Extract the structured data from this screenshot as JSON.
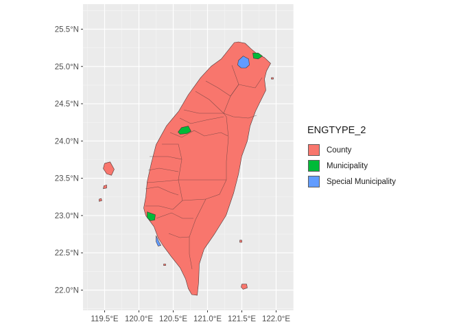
{
  "chart_data": {
    "type": "choropleth-map",
    "title": "",
    "xlabel": "",
    "ylabel": "",
    "xlim": [
      119.2,
      122.25
    ],
    "ylim": [
      21.7,
      25.8
    ],
    "x_ticks": [
      119.5,
      120.0,
      120.5,
      121.0,
      121.5,
      122.0
    ],
    "x_tick_labels": [
      "119.5°E",
      "120.0°E",
      "120.5°E",
      "121.0°E",
      "121.5°E",
      "122.0°E"
    ],
    "y_ticks": [
      22.0,
      22.5,
      23.0,
      23.5,
      24.0,
      24.5,
      25.0,
      25.5
    ],
    "y_tick_labels": [
      "22.0°N",
      "22.5°N",
      "23.0°N",
      "23.5°N",
      "24.0°N",
      "24.5°N",
      "25.0°N",
      "25.5°N"
    ],
    "grid": true,
    "legend": {
      "title": "ENGTYPE_2",
      "position": "right",
      "entries": [
        {
          "name": "County",
          "color": "#F8766D"
        },
        {
          "name": "Municipality",
          "color": "#00BA38"
        },
        {
          "name": "Special Municipality",
          "color": "#619CFF"
        }
      ]
    },
    "regions": [
      {
        "category": "County",
        "shape": "main island",
        "coords": [
          [
            121.39,
            25.32
          ],
          [
            121.45,
            25.33
          ],
          [
            121.55,
            25.31
          ],
          [
            121.63,
            25.24
          ],
          [
            121.72,
            25.17
          ],
          [
            121.83,
            25.12
          ],
          [
            121.92,
            25.04
          ],
          [
            121.86,
            24.94
          ],
          [
            121.83,
            24.83
          ],
          [
            121.85,
            24.68
          ],
          [
            121.78,
            24.55
          ],
          [
            121.7,
            24.4
          ],
          [
            121.62,
            24.2
          ],
          [
            121.58,
            24.0
          ],
          [
            121.5,
            23.8
          ],
          [
            121.45,
            23.55
          ],
          [
            121.38,
            23.3
          ],
          [
            121.27,
            23.0
          ],
          [
            121.1,
            22.75
          ],
          [
            120.95,
            22.55
          ],
          [
            120.88,
            22.35
          ],
          [
            120.87,
            22.1
          ],
          [
            120.85,
            21.93
          ],
          [
            120.77,
            21.94
          ],
          [
            120.72,
            22.02
          ],
          [
            120.68,
            22.15
          ],
          [
            120.6,
            22.3
          ],
          [
            120.47,
            22.45
          ],
          [
            120.35,
            22.6
          ],
          [
            120.28,
            22.7
          ],
          [
            120.22,
            22.85
          ],
          [
            120.1,
            23.0
          ],
          [
            120.07,
            23.1
          ],
          [
            120.1,
            23.25
          ],
          [
            120.12,
            23.45
          ],
          [
            120.18,
            23.7
          ],
          [
            120.25,
            23.95
          ],
          [
            120.4,
            24.2
          ],
          [
            120.58,
            24.4
          ],
          [
            120.72,
            24.62
          ],
          [
            120.9,
            24.85
          ],
          [
            121.05,
            25.0
          ],
          [
            121.2,
            25.1
          ]
        ]
      },
      {
        "category": "County",
        "shape": "Penghu",
        "coords": [
          [
            119.5,
            23.7
          ],
          [
            119.58,
            23.72
          ],
          [
            119.64,
            23.62
          ],
          [
            119.6,
            23.54
          ],
          [
            119.53,
            23.56
          ],
          [
            119.48,
            23.63
          ]
        ]
      },
      {
        "category": "County",
        "shape": "Penghu south",
        "coords": [
          [
            119.49,
            23.4
          ],
          [
            119.53,
            23.41
          ],
          [
            119.53,
            23.37
          ],
          [
            119.48,
            23.36
          ]
        ]
      },
      {
        "category": "County",
        "shape": "Penghu south 2",
        "coords": [
          [
            119.42,
            23.22
          ],
          [
            119.45,
            23.23
          ],
          [
            119.46,
            23.2
          ],
          [
            119.42,
            23.19
          ]
        ]
      },
      {
        "category": "County",
        "shape": "Green Island",
        "coords": [
          [
            121.47,
            22.67
          ],
          [
            121.5,
            22.67
          ],
          [
            121.5,
            22.64
          ],
          [
            121.47,
            22.64
          ]
        ]
      },
      {
        "category": "County",
        "shape": "Orchid Island",
        "coords": [
          [
            121.5,
            22.08
          ],
          [
            121.57,
            22.08
          ],
          [
            121.58,
            22.03
          ],
          [
            121.52,
            22.01
          ],
          [
            121.49,
            22.04
          ]
        ]
      },
      {
        "category": "County",
        "shape": "Liuqiu",
        "coords": [
          [
            120.36,
            22.35
          ],
          [
            120.39,
            22.35
          ],
          [
            120.39,
            22.33
          ],
          [
            120.36,
            22.33
          ]
        ]
      },
      {
        "category": "County",
        "shape": "Guishan",
        "coords": [
          [
            121.93,
            24.85
          ],
          [
            121.96,
            24.85
          ],
          [
            121.96,
            24.83
          ],
          [
            121.93,
            24.83
          ]
        ]
      },
      {
        "category": "Municipality",
        "shape": "Keelung",
        "coords": [
          [
            121.66,
            25.18
          ],
          [
            121.74,
            25.18
          ],
          [
            121.8,
            25.14
          ],
          [
            121.74,
            25.1
          ],
          [
            121.67,
            25.11
          ]
        ]
      },
      {
        "category": "Special Municipality",
        "shape": "Taipei",
        "coords": [
          [
            121.45,
            25.08
          ],
          [
            121.52,
            25.14
          ],
          [
            121.6,
            25.1
          ],
          [
            121.61,
            25.02
          ],
          [
            121.56,
            24.98
          ],
          [
            121.49,
            24.98
          ],
          [
            121.44,
            25.02
          ]
        ]
      },
      {
        "category": "Municipality",
        "shape": "Taichung city",
        "coords": [
          [
            120.57,
            24.12
          ],
          [
            120.62,
            24.18
          ],
          [
            120.72,
            24.2
          ],
          [
            120.76,
            24.13
          ],
          [
            120.7,
            24.1
          ],
          [
            120.6,
            24.09
          ]
        ]
      },
      {
        "category": "Municipality",
        "shape": "Tainan city",
        "coords": [
          [
            120.12,
            23.05
          ],
          [
            120.18,
            23.03
          ],
          [
            120.24,
            23.01
          ],
          [
            120.23,
            22.94
          ],
          [
            120.17,
            22.93
          ],
          [
            120.12,
            22.97
          ]
        ]
      },
      {
        "category": "Special Municipality",
        "shape": "Kaohsiung",
        "coords": [
          [
            120.25,
            22.73
          ],
          [
            120.29,
            22.65
          ],
          [
            120.32,
            22.6
          ],
          [
            120.28,
            22.59
          ],
          [
            120.25,
            22.65
          ]
        ]
      }
    ]
  }
}
